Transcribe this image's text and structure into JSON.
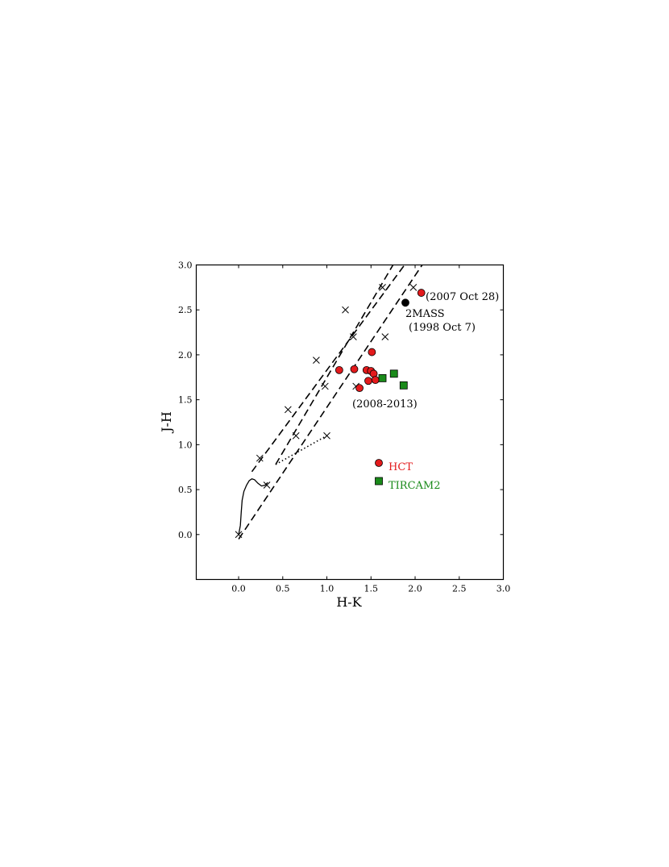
{
  "chart_data": {
    "type": "scatter",
    "xlabel": "H-K",
    "ylabel": "J-H",
    "xlim": [
      -0.48,
      3.0
    ],
    "ylim": [
      -0.5,
      3.0
    ],
    "x_ticks": [
      "0.0",
      "0.5",
      "1.0",
      "1.5",
      "2.0",
      "2.5",
      "3.0"
    ],
    "x_tick_values": [
      0.0,
      0.5,
      1.0,
      1.5,
      2.0,
      2.5,
      3.0
    ],
    "y_ticks": [
      "0.0",
      "0.5",
      "1.0",
      "1.5",
      "2.0",
      "2.5",
      "3.0"
    ],
    "y_tick_values": [
      0.0,
      0.5,
      1.0,
      1.5,
      2.0,
      2.5,
      3.0
    ],
    "grid": false,
    "legend_placement": "lower-right",
    "colors": {
      "hct": "#e31a1c",
      "tircam2": "#1a8a1a",
      "twomass": "#000000"
    },
    "lines": {
      "reddening_band_1": {
        "style": "dashed",
        "x": [
          0.15,
          1.88
        ],
        "y": [
          0.7,
          3.0
        ]
      },
      "reddening_band_2": {
        "style": "dashed",
        "x": [
          0.42,
          1.75
        ],
        "y": [
          0.78,
          3.0
        ]
      },
      "reddening_band_3": {
        "style": "dashed",
        "x": [
          0.0,
          2.08
        ],
        "y": [
          -0.05,
          3.0
        ]
      },
      "ctts_locus": {
        "style": "dotted",
        "x": [
          0.42,
          1.0
        ],
        "y": [
          0.78,
          1.1
        ]
      },
      "main_sequence": {
        "style": "solid",
        "x": [
          0.0,
          0.02,
          0.03,
          0.04,
          0.06,
          0.09,
          0.12,
          0.15,
          0.18,
          0.22,
          0.26,
          0.3,
          0.33
        ],
        "y": [
          0.0,
          0.1,
          0.25,
          0.38,
          0.48,
          0.55,
          0.6,
          0.62,
          0.61,
          0.57,
          0.54,
          0.55,
          0.58
        ]
      }
    },
    "extinction_marks": {
      "x": [
        0.0,
        0.24,
        0.56,
        0.88,
        1.21,
        0.32,
        0.65,
        0.98,
        1.3,
        1.63,
        1.0,
        1.33,
        1.66,
        1.98
      ],
      "y": [
        0.0,
        0.85,
        1.39,
        1.94,
        2.5,
        0.55,
        1.1,
        1.65,
        2.2,
        2.75,
        1.1,
        1.65,
        2.2,
        2.75
      ]
    },
    "series": [
      {
        "name": "HCT",
        "marker": "circle",
        "x": [
          1.14,
          1.31,
          1.37,
          1.45,
          1.47,
          1.5,
          1.51,
          1.53,
          1.55,
          2.07
        ],
        "y": [
          1.83,
          1.84,
          1.63,
          1.83,
          1.71,
          1.82,
          2.03,
          1.79,
          1.72,
          2.69
        ]
      },
      {
        "name": "TIRCAM2",
        "marker": "square",
        "x": [
          1.63,
          1.76,
          1.87
        ],
        "y": [
          1.74,
          1.79,
          1.66
        ]
      },
      {
        "name": "",
        "marker": "black-circle",
        "x": [
          1.89
        ],
        "y": [
          2.58
        ]
      }
    ],
    "annotations": [
      {
        "id": "oct2007",
        "text": "(2007 Oct 28)",
        "x": 2.12,
        "y": 2.62
      },
      {
        "id": "twomass_1",
        "text": "2MASS",
        "x": 1.89,
        "y": 2.4
      },
      {
        "id": "twomass_2",
        "text": "(1998 Oct 7)",
        "x": 1.92,
        "y": 2.25
      },
      {
        "id": "range",
        "text": "(2008-2013)",
        "x": 1.3,
        "y": 1.44
      }
    ],
    "legend": [
      {
        "label": "HCT",
        "marker": "circle"
      },
      {
        "label": "TIRCAM2",
        "marker": "square"
      }
    ]
  }
}
